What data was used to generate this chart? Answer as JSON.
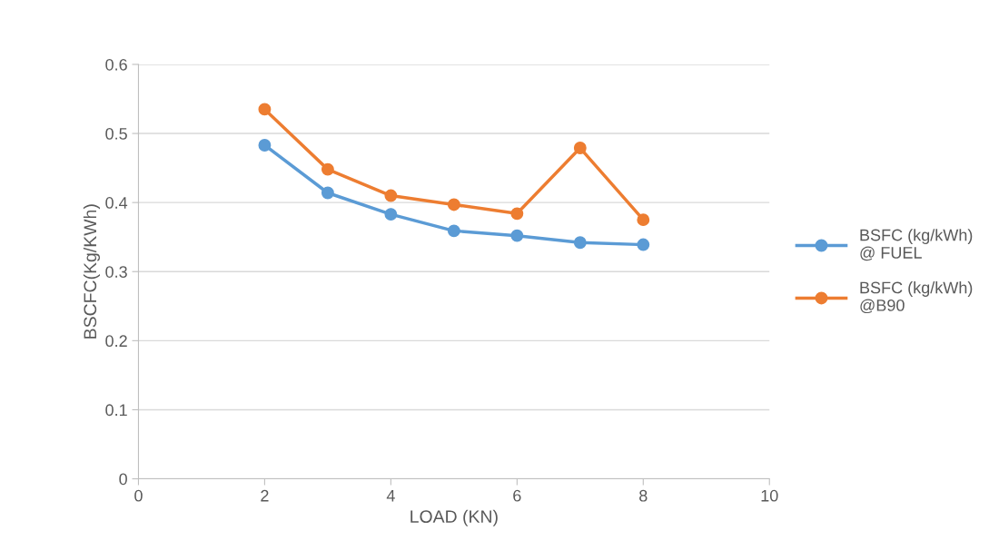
{
  "chart_data": {
    "type": "line",
    "xlabel": "LOAD (KN)",
    "ylabel": "BSCFC(Kg/KWh)",
    "x": [
      2,
      3,
      4,
      5,
      6,
      7,
      8
    ],
    "series": [
      {
        "name": "BSFC (kg/kWh) @ FUEL",
        "color": "#5b9bd5",
        "values": [
          0.483,
          0.414,
          0.383,
          0.359,
          0.352,
          0.342,
          0.339
        ]
      },
      {
        "name": "BSFC (kg/kWh) @B90",
        "color": "#ed7d31",
        "values": [
          0.535,
          0.448,
          0.41,
          0.397,
          0.384,
          0.479,
          0.375
        ]
      }
    ],
    "xlim": [
      0,
      10
    ],
    "xticks": [
      0,
      2,
      4,
      6,
      8,
      10
    ],
    "ylim": [
      0,
      0.6
    ],
    "yticks": [
      0,
      0.1,
      0.2,
      0.3,
      0.4,
      0.5,
      0.6
    ],
    "grid": "y",
    "legend": "right",
    "marker": "circle",
    "line_style": "solid"
  }
}
